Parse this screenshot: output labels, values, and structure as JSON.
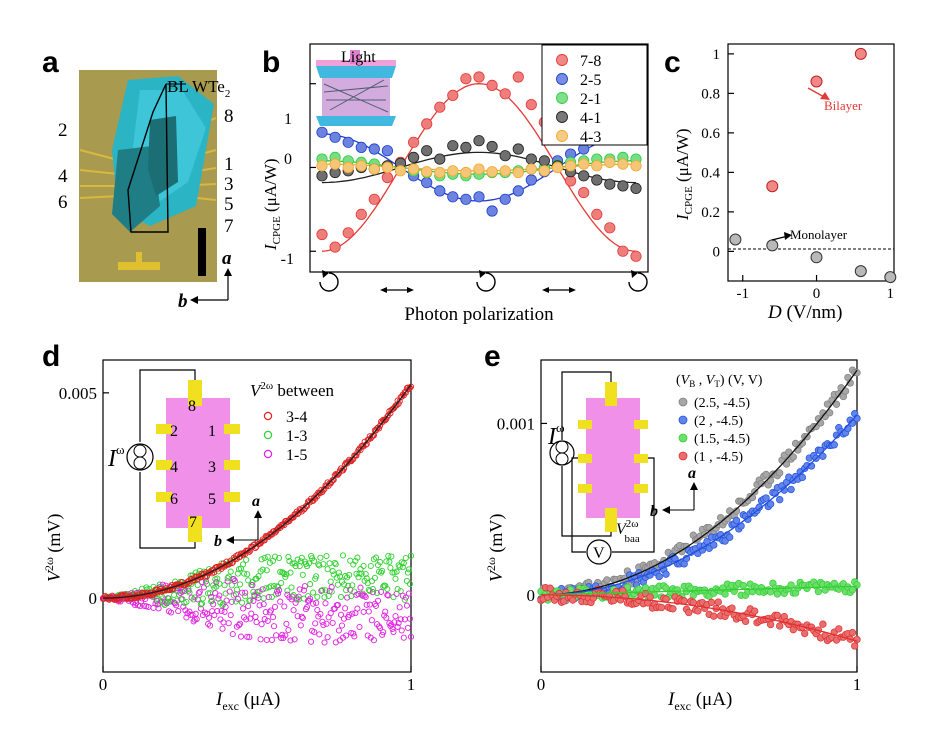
{
  "panel_labels": {
    "a": "a",
    "b": "b",
    "c": "c",
    "d": "d",
    "e": "e"
  },
  "panel_a": {
    "device": "BL WTe",
    "device_sub": "2",
    "electrodes": [
      "2",
      "4",
      "6",
      "8",
      "1",
      "3",
      "5",
      "7"
    ],
    "axis_a": "a",
    "axis_b": "b",
    "colors": {
      "substrate": "#a89a4e",
      "flake": "#2fb7c9",
      "flake_dark": "#1f7f86",
      "gold": "#e0c030"
    }
  },
  "panel_b": {
    "inset_label": "Light",
    "ylabel_main": "I",
    "ylabel_sub": "CPGE",
    "ylabel_unit": " (μA/W)",
    "yticks": [
      "1",
      "0",
      "-1"
    ],
    "xlabel": "Photon polarization",
    "x_symbols": [
      "circle-cw-icon",
      "double-arrow-icon",
      "circle-ccw-icon",
      "double-arrow-icon",
      "circle-cw-icon"
    ]
  },
  "panel_c": {
    "ylabel_main": "I",
    "ylabel_sub": "CPGE",
    "ylabel_unit": " (μA/W)",
    "xlabel_main": "D",
    "xlabel_unit": " (V/nm)",
    "yticks": [
      "1",
      "0.8",
      "0.6",
      "0.4",
      "0.2",
      "0"
    ],
    "xticks": [
      "-1",
      "0",
      "1"
    ],
    "annotations": {
      "bilayer": "Bilayer",
      "monolayer": "Monolayer"
    }
  },
  "panel_d": {
    "ylabel_main": "V",
    "ylabel_sup": "2ω",
    "ylabel_unit": " (mV)",
    "xlabel_main": "I",
    "xlabel_sub": "exc",
    "xlabel_unit": " (μA)",
    "yticks": [
      "0.005",
      "0"
    ],
    "xticks": [
      "0",
      "1"
    ],
    "legend_title_main": "V",
    "legend_title_sup": "2ω",
    "legend_title_rest": " between",
    "source_label": "I",
    "source_sup": "ω",
    "pads": [
      "8",
      "2",
      "1",
      "4",
      "3",
      "6",
      "5",
      "7"
    ],
    "axis_a": "a",
    "axis_b": "b"
  },
  "panel_e": {
    "ylabel_main": "V",
    "ylabel_sup": "2ω",
    "ylabel_unit": " (mV)",
    "xlabel_main": "I",
    "xlabel_sub": "exc",
    "xlabel_unit": " (μA)",
    "yticks": [
      "0.001",
      "0"
    ],
    "xticks": [
      "0",
      "1"
    ],
    "legend_title": "(V_B , V_T) (V, V)",
    "source_label": "I",
    "source_sup": "ω",
    "meter_label": "V",
    "meter_sup": "2ω",
    "meter_sub": "baa",
    "meter_symbol": "V",
    "axis_a": "a",
    "axis_b": "b"
  },
  "chart_data": [
    {
      "panel": "b",
      "type": "scatter",
      "xlabel": "Photon polarization",
      "ylabel": "I_CPGE (μA/W)",
      "xlim": [
        0,
        180
      ],
      "ylim": [
        -1.2,
        1.45
      ],
      "x_ticks_meaning": [
        "circular",
        "linear",
        "circular",
        "linear",
        "circular"
      ],
      "series": [
        {
          "name": "7-8",
          "color": "#e53935",
          "fit": {
            "amplitude": 1.0,
            "offset": 0.0,
            "sign": 1
          },
          "points": [
            [
              0,
              -0.8
            ],
            [
              7.5,
              -0.95
            ],
            [
              15,
              -0.78
            ],
            [
              22.5,
              -0.56
            ],
            [
              30,
              -0.38
            ],
            [
              37.5,
              -0.12
            ],
            [
              45,
              0.06
            ],
            [
              52.5,
              0.3
            ],
            [
              60,
              0.52
            ],
            [
              67.5,
              0.72
            ],
            [
              75,
              0.86
            ],
            [
              82.5,
              1.06
            ],
            [
              90,
              1.08
            ],
            [
              97.5,
              0.98
            ],
            [
              105,
              0.88
            ],
            [
              112.5,
              1.08
            ],
            [
              120,
              0.75
            ],
            [
              127.5,
              0.54
            ],
            [
              135,
              0.05
            ],
            [
              142.5,
              -0.16
            ],
            [
              150,
              -0.3
            ],
            [
              157.5,
              -0.56
            ],
            [
              165,
              -0.72
            ],
            [
              172.5,
              -1.0
            ],
            [
              180,
              -1.06
            ]
          ]
        },
        {
          "name": "2-5",
          "color": "#1e40d0",
          "fit": {
            "amplitude": 0.4,
            "offset": 0.0,
            "sign": -1
          },
          "points": [
            [
              0,
              0.42
            ],
            [
              7.5,
              0.36
            ],
            [
              15,
              0.3
            ],
            [
              22.5,
              0.24
            ],
            [
              30,
              0.22
            ],
            [
              37.5,
              0.2
            ],
            [
              45,
              0.01
            ],
            [
              52.5,
              -0.1
            ],
            [
              60,
              -0.18
            ],
            [
              67.5,
              -0.28
            ],
            [
              75,
              -0.35
            ],
            [
              82.5,
              -0.38
            ],
            [
              90,
              -0.35
            ],
            [
              97.5,
              -0.52
            ],
            [
              105,
              -0.38
            ],
            [
              112.5,
              -0.28
            ],
            [
              120,
              -0.15
            ],
            [
              127.5,
              -0.05
            ],
            [
              135,
              0.08
            ],
            [
              142.5,
              0.16
            ],
            [
              150,
              0.22
            ],
            [
              157.5,
              0.5
            ],
            [
              165,
              0.33
            ],
            [
              172.5,
              0.38
            ],
            [
              180,
              0.42
            ]
          ]
        },
        {
          "name": "2-1",
          "color": "#2ecc40",
          "fit": {
            "amplitude": 0.08,
            "offset": 0.0,
            "sign": -1
          },
          "points": [
            [
              0,
              0.1
            ],
            [
              7.5,
              0.12
            ],
            [
              15,
              0.08
            ],
            [
              22.5,
              0.06
            ],
            [
              30,
              0.04
            ],
            [
              37.5,
              0.02
            ],
            [
              45,
              0.0
            ],
            [
              52.5,
              -0.04
            ],
            [
              60,
              -0.06
            ],
            [
              67.5,
              -0.1
            ],
            [
              75,
              -0.08
            ],
            [
              82.5,
              -0.1
            ],
            [
              90,
              -0.08
            ],
            [
              97.5,
              -0.06
            ],
            [
              105,
              -0.06
            ],
            [
              112.5,
              -0.04
            ],
            [
              120,
              -0.02
            ],
            [
              127.5,
              0.0
            ],
            [
              135,
              0.03
            ],
            [
              142.5,
              0.06
            ],
            [
              150,
              0.08
            ],
            [
              157.5,
              0.1
            ],
            [
              165,
              0.1
            ],
            [
              172.5,
              0.12
            ],
            [
              180,
              0.1
            ]
          ]
        },
        {
          "name": "4-1",
          "color": "#222222",
          "fit": {
            "amplitude": 0.18,
            "offset": 0.0,
            "sign": 1
          },
          "points": [
            [
              0,
              -0.1
            ],
            [
              7.5,
              -0.06
            ],
            [
              15,
              -0.04
            ],
            [
              22.5,
              0.0
            ],
            [
              30,
              -0.02
            ],
            [
              37.5,
              0.02
            ],
            [
              45,
              0.05
            ],
            [
              52.5,
              0.12
            ],
            [
              60,
              0.2
            ],
            [
              67.5,
              0.1
            ],
            [
              75,
              0.26
            ],
            [
              82.5,
              0.24
            ],
            [
              90,
              0.32
            ],
            [
              97.5,
              0.25
            ],
            [
              105,
              0.14
            ],
            [
              112.5,
              0.22
            ],
            [
              120,
              0.1
            ],
            [
              127.5,
              0.08
            ],
            [
              135,
              0.02
            ],
            [
              142.5,
              -0.05
            ],
            [
              150,
              -0.1
            ],
            [
              157.5,
              -0.15
            ],
            [
              165,
              -0.2
            ],
            [
              172.5,
              -0.22
            ],
            [
              180,
              -0.25
            ]
          ]
        },
        {
          "name": "4-3",
          "color": "#f0a830",
          "fit": {
            "amplitude": 0.04,
            "offset": 0.0,
            "sign": -1
          },
          "points": [
            [
              0,
              0.02
            ],
            [
              7.5,
              0.04
            ],
            [
              15,
              0.0
            ],
            [
              22.5,
              0.02
            ],
            [
              30,
              -0.02
            ],
            [
              37.5,
              0.0
            ],
            [
              45,
              -0.04
            ],
            [
              52.5,
              -0.02
            ],
            [
              60,
              -0.05
            ],
            [
              67.5,
              -0.06
            ],
            [
              75,
              -0.04
            ],
            [
              82.5,
              -0.06
            ],
            [
              90,
              -0.02
            ],
            [
              97.5,
              -0.05
            ],
            [
              105,
              -0.04
            ],
            [
              112.5,
              -0.06
            ],
            [
              120,
              -0.02
            ],
            [
              127.5,
              -0.04
            ],
            [
              135,
              0.0
            ],
            [
              142.5,
              0.02
            ],
            [
              150,
              0.04
            ],
            [
              157.5,
              0.02
            ],
            [
              165,
              0.06
            ],
            [
              172.5,
              0.04
            ],
            [
              180,
              0.02
            ]
          ]
        }
      ]
    },
    {
      "panel": "c",
      "type": "scatter",
      "xlabel": "D (V/nm)",
      "ylabel": "I_CPGE (μA/W)",
      "xlim": [
        -1.2,
        1.05
      ],
      "ylim": [
        -0.15,
        1.05
      ],
      "zero_line": "dashed",
      "series": [
        {
          "name": "Bilayer",
          "color": "#e53935",
          "points": [
            [
              -0.6,
              0.33
            ],
            [
              0.0,
              0.86
            ],
            [
              0.6,
              1.0
            ]
          ]
        },
        {
          "name": "Monolayer",
          "color": "#8a8a8a",
          "points": [
            [
              -1.1,
              0.06
            ],
            [
              -0.6,
              0.03
            ],
            [
              0.0,
              -0.03
            ],
            [
              0.6,
              -0.1
            ],
            [
              1.0,
              -0.13
            ]
          ]
        }
      ]
    },
    {
      "panel": "d",
      "type": "scatter",
      "xlabel": "I_exc (μA)",
      "ylabel": "V^2ω (mV)",
      "xlim": [
        0,
        1
      ],
      "ylim": [
        -0.0018,
        0.0058
      ],
      "legend_placement": "top-right",
      "series": [
        {
          "name": "3-4",
          "color": "#e02020",
          "fit": "quadratic",
          "coefficient": 0.0052
        },
        {
          "name": "1-3",
          "color": "#30d030",
          "trend": "noise around 0.0005 above x=0.2"
        },
        {
          "name": "1-5",
          "color": "#e020e0",
          "trend": "noise around -0.0005 above x=0.2"
        }
      ]
    },
    {
      "panel": "e",
      "type": "scatter",
      "xlabel": "I_exc (μA)",
      "ylabel": "V^2ω (mV)",
      "xlim": [
        0,
        1
      ],
      "ylim": [
        -0.00045,
        0.00137
      ],
      "legend_placement": "top-right",
      "series": [
        {
          "name": "(2.5, -4.5)",
          "color": "#808080",
          "fit": "quadratic",
          "coefficient": 0.00131
        },
        {
          "name": "(2 , -4.5)",
          "color": "#2050e0",
          "fit": "quadratic",
          "coefficient": 0.00105
        },
        {
          "name": "(1.5, -4.5)",
          "color": "#30d030",
          "fit": "linear",
          "coefficient": 5e-05
        },
        {
          "name": "(1 , -4.5)",
          "color": "#e03030",
          "fit": "quadratic",
          "coefficient": -0.00027
        }
      ]
    }
  ]
}
